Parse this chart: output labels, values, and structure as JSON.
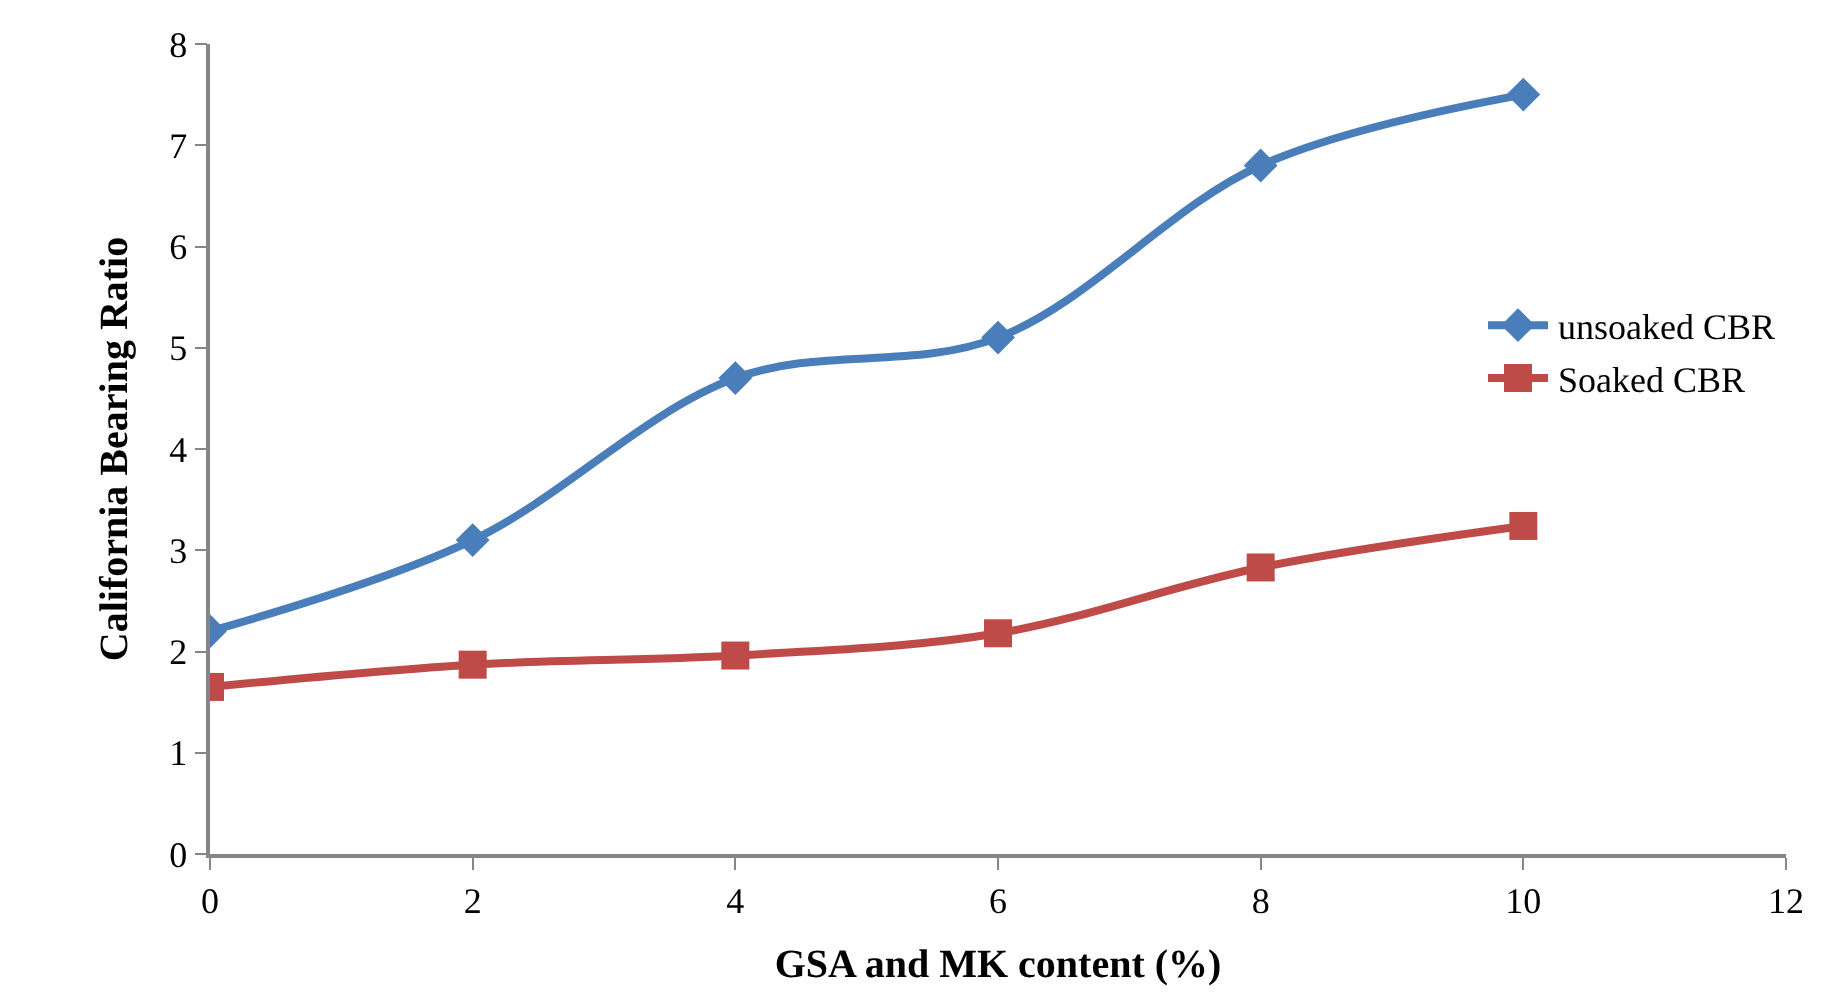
{
  "chart_data": {
    "type": "line",
    "xlabel": "GSA and MK content (%)",
    "ylabel": "California Bearing Ratio",
    "x": [
      0,
      2,
      4,
      6,
      8,
      10
    ],
    "series": [
      {
        "name": "unsoaked CBR",
        "color": "#4a7ebb",
        "marker": "diamond",
        "values": [
          2.2,
          3.1,
          4.7,
          5.1,
          6.8,
          7.5
        ]
      },
      {
        "name": "Soaked CBR",
        "color": "#be4b48",
        "marker": "square",
        "values": [
          1.65,
          1.87,
          1.96,
          2.18,
          2.83,
          3.24
        ]
      }
    ],
    "xlim": [
      0,
      12
    ],
    "xticks": [
      0,
      2,
      4,
      6,
      8,
      10,
      12
    ],
    "ylim": [
      0,
      8
    ],
    "yticks": [
      0,
      1,
      2,
      3,
      4,
      5,
      6,
      7,
      8
    ],
    "legend": "right",
    "line_style": "solid"
  }
}
